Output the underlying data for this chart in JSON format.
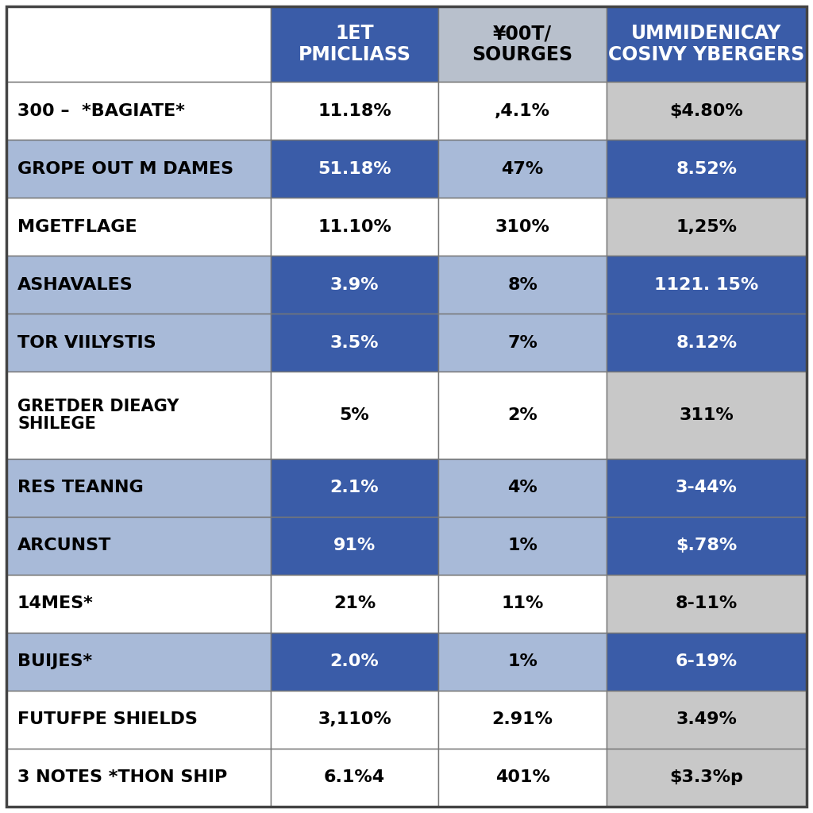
{
  "headers": [
    "1ET\nPMICLIASS",
    "¥00T/\nSOURGES",
    "UMMIDENICAY\nCOSIVY YBERGERS"
  ],
  "rows": [
    {
      "label": "300 –  *BAGIATE*",
      "values": [
        "11.18%",
        ",4.1%",
        "$4.80%"
      ],
      "cell_bgs": [
        "white",
        "white",
        "gray"
      ],
      "label_bg": "white"
    },
    {
      "label": "GROPE OUT M DAMES",
      "values": [
        "51.18%",
        "47%",
        "8.52%"
      ],
      "cell_bgs": [
        "blue",
        "light_blue",
        "blue"
      ],
      "label_bg": "light_blue"
    },
    {
      "label": "MGETFLAGE",
      "values": [
        "11.10%",
        "310%",
        "1,25%"
      ],
      "cell_bgs": [
        "white",
        "white",
        "gray"
      ],
      "label_bg": "white"
    },
    {
      "label": "ASHAVALES",
      "values": [
        "3.9%",
        "8%",
        "1121. 15%"
      ],
      "cell_bgs": [
        "blue",
        "light_blue",
        "blue"
      ],
      "label_bg": "light_blue"
    },
    {
      "label": "TOR VIILYSTIS",
      "values": [
        "3.5%",
        "7%",
        "8.12%"
      ],
      "cell_bgs": [
        "blue",
        "light_blue",
        "blue"
      ],
      "label_bg": "light_blue"
    },
    {
      "label": "GRETDER DIEAGY\nSHILEGE",
      "values": [
        "5%",
        "2%",
        "311%"
      ],
      "cell_bgs": [
        "white",
        "white",
        "gray"
      ],
      "label_bg": "white"
    },
    {
      "label": "RES TEANNG",
      "values": [
        "2.1%",
        "4%",
        "3-44%"
      ],
      "cell_bgs": [
        "blue",
        "light_blue",
        "blue"
      ],
      "label_bg": "light_blue"
    },
    {
      "label": "ARCUNST",
      "values": [
        "91%",
        "1%",
        "$.78%"
      ],
      "cell_bgs": [
        "blue",
        "light_blue",
        "blue"
      ],
      "label_bg": "light_blue"
    },
    {
      "label": "14MES*",
      "values": [
        "21%",
        "11%",
        "8-11%"
      ],
      "cell_bgs": [
        "white",
        "white",
        "gray"
      ],
      "label_bg": "white"
    },
    {
      "label": "BUIJES*",
      "values": [
        "2.0%",
        "1%",
        "6-19%"
      ],
      "cell_bgs": [
        "blue",
        "light_blue",
        "blue"
      ],
      "label_bg": "light_blue"
    },
    {
      "label": "FUTUFPE SHIELDS",
      "values": [
        "3,110%",
        "2.91%",
        "3.49%"
      ],
      "cell_bgs": [
        "white",
        "white",
        "gray"
      ],
      "label_bg": "white"
    },
    {
      "label": "3 NOTES *THON SHIP",
      "values": [
        "6.1%4",
        "401%",
        "$3.3%p"
      ],
      "cell_bgs": [
        "white",
        "white",
        "gray"
      ],
      "label_bg": "white"
    }
  ],
  "color_map": {
    "blue": "#3A5CA8",
    "light_blue": "#A8BAD8",
    "white": "#FFFFFF",
    "gray": "#C8C8C8",
    "header_blue": "#3A5CA8",
    "header_gray": "#B8C0CC"
  },
  "border_color": "#777777",
  "text_white": "#FFFFFF",
  "text_black": "#000000"
}
